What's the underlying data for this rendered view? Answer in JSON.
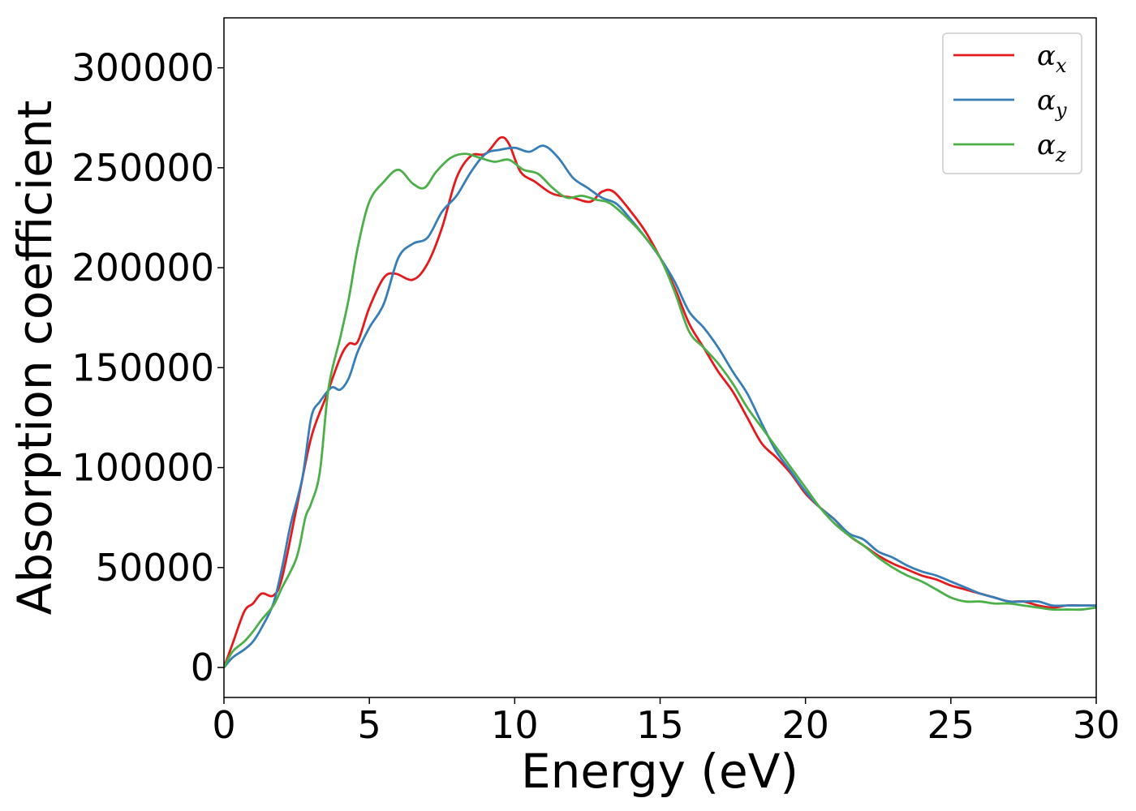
{
  "chart_data": {
    "type": "line",
    "xlabel": "Energy (eV)",
    "ylabel": "Absorption coefficient",
    "xlim": [
      0,
      30
    ],
    "ylim": [
      -15000,
      325000
    ],
    "xticks": [
      0,
      5,
      10,
      15,
      20,
      25,
      30
    ],
    "xtick_labels": [
      "0",
      "5",
      "10",
      "15",
      "20",
      "25",
      "30"
    ],
    "yticks": [
      0,
      50000,
      100000,
      150000,
      200000,
      250000,
      300000
    ],
    "ytick_labels": [
      "0",
      "50000",
      "100000",
      "150000",
      "200000",
      "250000",
      "300000"
    ],
    "grid": false,
    "legend_position": "top-right",
    "series": [
      {
        "name": "αx",
        "symbol": "α",
        "subscript": "x",
        "color": "#e41a1c",
        "x": [
          0,
          0.3,
          0.7,
          1.0,
          1.3,
          1.7,
          2.0,
          2.5,
          3.0,
          3.5,
          4.0,
          4.3,
          4.6,
          5.0,
          5.5,
          5.9,
          6.5,
          7.0,
          7.5,
          8.0,
          8.5,
          9.0,
          9.5,
          9.8,
          10.2,
          10.7,
          11.3,
          12.0,
          12.6,
          13.0,
          13.4,
          14.0,
          14.5,
          15.0,
          15.5,
          16.0,
          16.5,
          17.0,
          17.5,
          18.0,
          18.5,
          19.0,
          19.5,
          20.0,
          20.5,
          21.0,
          21.5,
          22.0,
          22.5,
          23.0,
          23.5,
          24.0,
          24.5,
          25.0,
          25.5,
          26.0,
          26.5,
          27.0,
          27.5,
          28.0,
          28.5,
          29.0,
          29.5,
          30.0
        ],
        "y": [
          0,
          12000,
          28000,
          32000,
          37000,
          36000,
          45000,
          80000,
          115000,
          135000,
          155000,
          162000,
          163000,
          180000,
          195000,
          197000,
          194000,
          202000,
          220000,
          245000,
          256000,
          257000,
          265000,
          262000,
          248000,
          243000,
          237000,
          235000,
          233000,
          238000,
          238000,
          228000,
          218000,
          205000,
          190000,
          172000,
          160000,
          148000,
          138000,
          125000,
          112000,
          105000,
          97000,
          87000,
          80000,
          74000,
          66000,
          61000,
          56000,
          52000,
          49000,
          46000,
          44000,
          41000,
          39000,
          37000,
          35000,
          33000,
          33000,
          31000,
          30000,
          31000,
          31000,
          31000
        ]
      },
      {
        "name": "αy",
        "symbol": "α",
        "subscript": "y",
        "color": "#377eb8",
        "x": [
          0,
          0.3,
          0.7,
          1.0,
          1.3,
          1.7,
          2.0,
          2.3,
          2.7,
          3.0,
          3.3,
          3.7,
          4.0,
          4.3,
          4.6,
          5.0,
          5.5,
          6.0,
          6.5,
          7.0,
          7.5,
          8.0,
          8.5,
          9.0,
          9.5,
          10.0,
          10.5,
          11.0,
          11.5,
          12.0,
          12.5,
          13.0,
          13.5,
          14.0,
          14.5,
          15.0,
          15.5,
          16.0,
          16.5,
          17.0,
          17.5,
          18.0,
          18.5,
          19.0,
          19.5,
          20.0,
          20.5,
          21.0,
          21.5,
          22.0,
          22.5,
          23.0,
          23.5,
          24.0,
          24.5,
          25.0,
          25.5,
          26.0,
          26.5,
          27.0,
          27.5,
          28.0,
          28.5,
          29.0,
          29.5,
          30.0
        ],
        "y": [
          0,
          5000,
          9000,
          13000,
          20000,
          32000,
          50000,
          72000,
          95000,
          125000,
          133000,
          140000,
          139000,
          145000,
          158000,
          170000,
          182000,
          205000,
          212000,
          215000,
          228000,
          236000,
          248000,
          257000,
          259000,
          260000,
          258000,
          261000,
          255000,
          245000,
          240000,
          235000,
          232000,
          224000,
          215000,
          205000,
          193000,
          178000,
          170000,
          160000,
          148000,
          137000,
          122000,
          108000,
          98000,
          88000,
          80000,
          74000,
          67000,
          64000,
          58000,
          55000,
          51000,
          48000,
          46000,
          43000,
          40000,
          37000,
          35000,
          33000,
          33000,
          33000,
          31000,
          31000,
          31000,
          31000
        ]
      },
      {
        "name": "αz",
        "symbol": "α",
        "subscript": "z",
        "color": "#4daf4a",
        "x": [
          0,
          0.3,
          0.7,
          1.0,
          1.3,
          1.7,
          2.0,
          2.5,
          2.8,
          3.0,
          3.3,
          3.6,
          4.0,
          4.3,
          4.6,
          5.0,
          5.5,
          6.0,
          6.5,
          6.9,
          7.3,
          7.8,
          8.3,
          8.8,
          9.3,
          9.8,
          10.3,
          10.8,
          11.3,
          11.8,
          12.3,
          12.8,
          13.3,
          14.0,
          14.5,
          15.0,
          15.5,
          16.0,
          16.5,
          17.0,
          17.5,
          18.0,
          18.5,
          19.0,
          19.5,
          20.0,
          20.5,
          21.0,
          21.5,
          22.0,
          22.5,
          23.0,
          23.5,
          24.0,
          24.5,
          25.0,
          25.5,
          26.0,
          26.5,
          27.0,
          27.5,
          28.0,
          28.5,
          29.0,
          29.5,
          30.0
        ],
        "y": [
          0,
          8000,
          13000,
          18000,
          24000,
          31000,
          40000,
          55000,
          75000,
          82000,
          98000,
          140000,
          165000,
          185000,
          210000,
          233000,
          243000,
          249000,
          242000,
          240000,
          248000,
          255000,
          257000,
          255000,
          253000,
          254000,
          249000,
          247000,
          240000,
          235000,
          236000,
          234000,
          232000,
          223000,
          215000,
          205000,
          188000,
          168000,
          160000,
          152000,
          142000,
          130000,
          120000,
          110000,
          100000,
          90000,
          80000,
          72000,
          66000,
          61000,
          55000,
          50000,
          46000,
          43000,
          39000,
          35000,
          33000,
          33000,
          32000,
          32000,
          31000,
          30000,
          29000,
          29000,
          29000,
          30000
        ]
      }
    ]
  }
}
